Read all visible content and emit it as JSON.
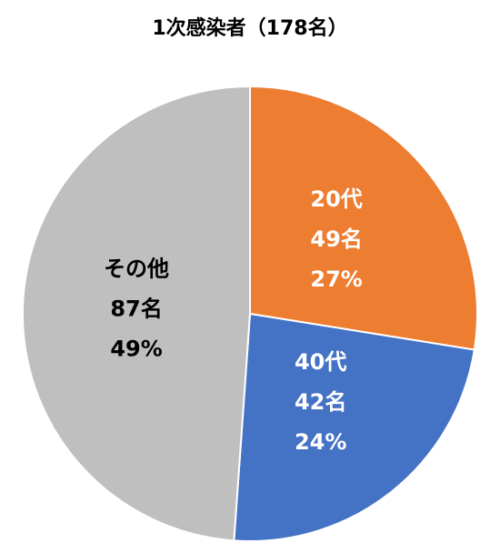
{
  "chart_data": {
    "type": "pie",
    "title": "1次感染者（178名）",
    "categories": [
      "20代",
      "40代",
      "その他"
    ],
    "values": [
      49,
      42,
      87
    ],
    "value_labels": [
      "49名",
      "42名",
      "87名"
    ],
    "percents": [
      27,
      24,
      49
    ],
    "percent_labels": [
      "27%",
      "24%",
      "49%"
    ],
    "colors": [
      "#ed7d31",
      "#4472c4",
      "#bfbfbf"
    ],
    "label_colors": [
      "#ffffff",
      "#ffffff",
      "#000000"
    ]
  }
}
